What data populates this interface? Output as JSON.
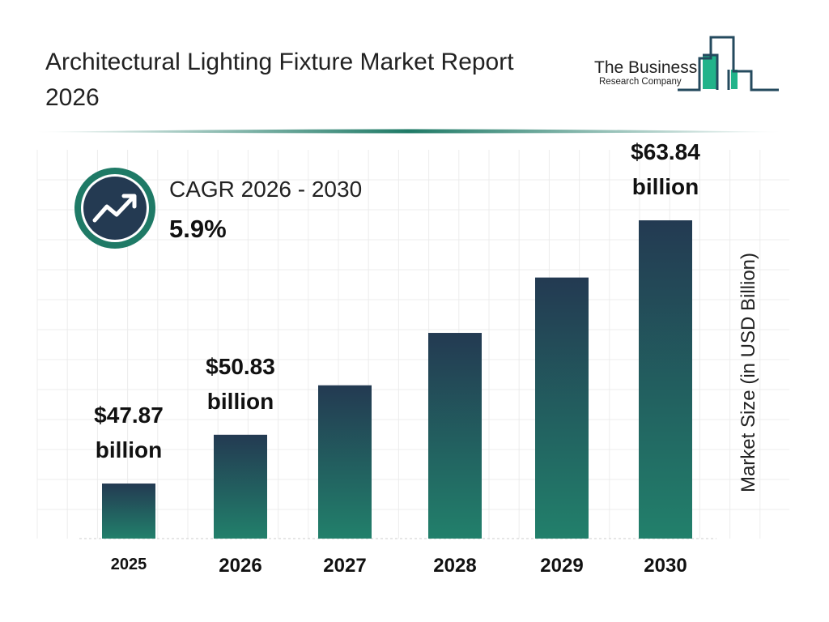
{
  "header": {
    "title": "Architectural Lighting Fixture Market Report 2026"
  },
  "logo": {
    "line1": "The Business",
    "line2": "Research Company"
  },
  "cagr": {
    "label": "CAGR 2026 - 2030",
    "value": "5.9%",
    "icon": "trending-up-icon"
  },
  "colors": {
    "bar_top": "#233a52",
    "bar_bottom": "#22806b",
    "accent": "#1f7a66",
    "dark": "#243a52"
  },
  "chart_data": {
    "type": "bar",
    "title": "",
    "xlabel": "",
    "ylabel": "Market Size (in USD Billion)",
    "categories": [
      "2025",
      "2026",
      "2027",
      "2028",
      "2029",
      "2030"
    ],
    "values": [
      47.87,
      50.83,
      53.83,
      57.01,
      60.37,
      63.84
    ],
    "data_labels": [
      {
        "index": 0,
        "amount": "$47.87",
        "unit": "billion"
      },
      {
        "index": 1,
        "amount": "$50.83",
        "unit": "billion"
      },
      {
        "index": 5,
        "amount": "$63.84",
        "unit": "billion"
      }
    ],
    "grid": true,
    "legend": "none"
  }
}
